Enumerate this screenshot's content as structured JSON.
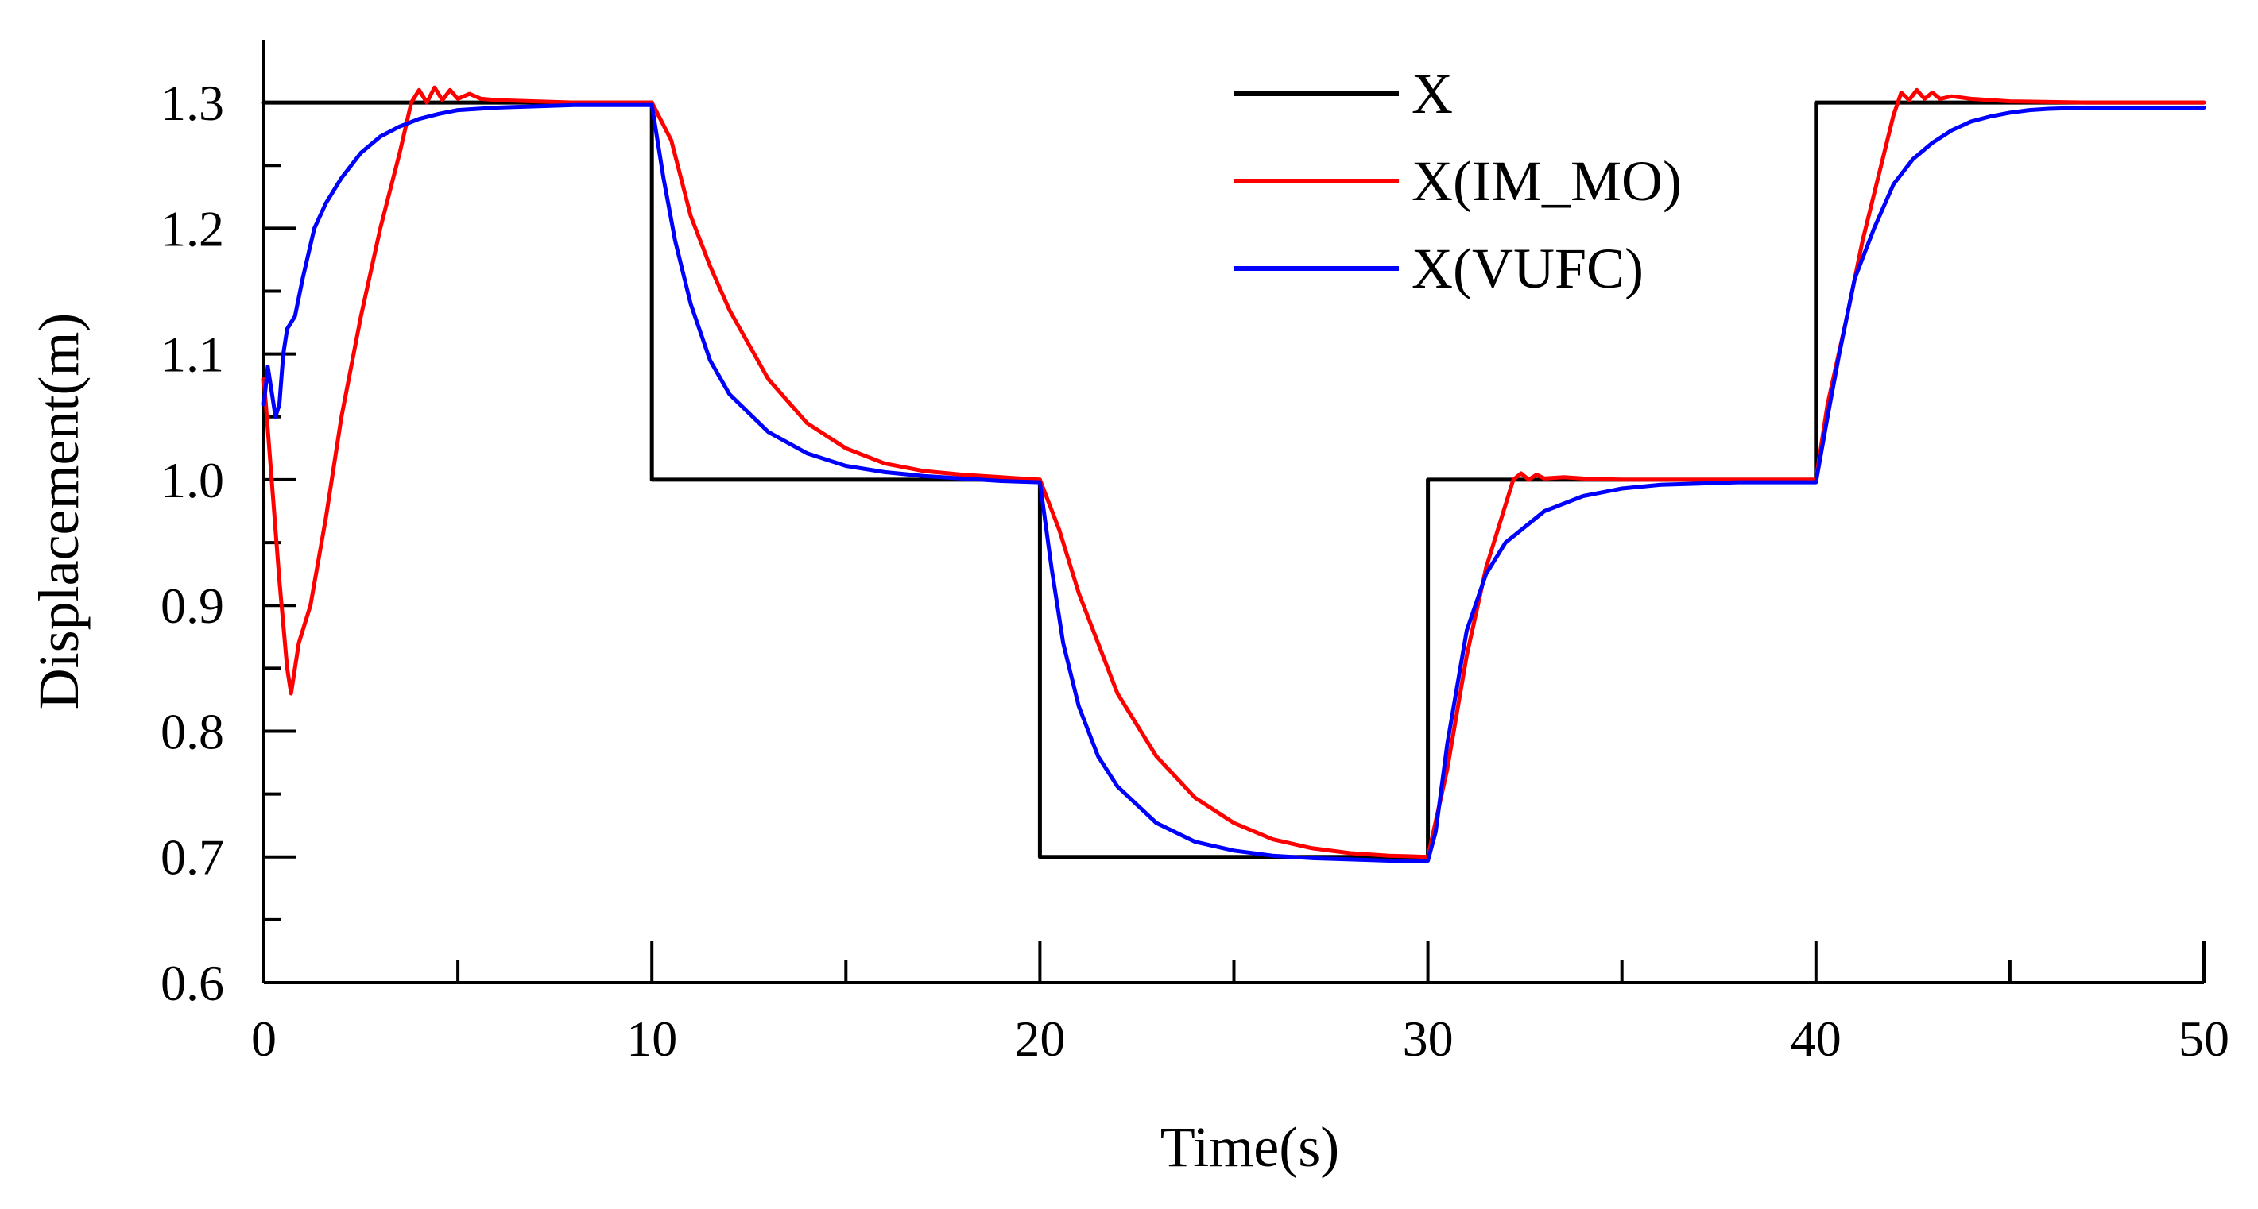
{
  "chart_data": {
    "type": "line",
    "title": "",
    "xlabel": "Time(s)",
    "ylabel": "Displacement(m)",
    "xlim": [
      0,
      50
    ],
    "ylim": [
      0.6,
      1.35
    ],
    "x_ticks": [
      0,
      10,
      20,
      30,
      40,
      50
    ],
    "x_tick_labels": [
      "0",
      "10",
      "20",
      "30",
      "40",
      "50"
    ],
    "x_minor_ticks": [
      5,
      15,
      25,
      35,
      45
    ],
    "y_ticks": [
      0.6,
      0.7,
      0.8,
      0.9,
      1.0,
      1.1,
      1.2,
      1.3
    ],
    "y_tick_labels": [
      "0.6",
      "0.7",
      "0.8",
      "0.9",
      "1.0",
      "1.1",
      "1.2",
      "1.3"
    ],
    "y_minor_ticks": [
      0.65,
      0.75,
      0.85,
      0.95,
      1.05,
      1.15,
      1.25
    ],
    "grid": false,
    "legend_position": "top-right",
    "series": [
      {
        "name": "X",
        "color": "#000000",
        "x": [
          0,
          0.001,
          10,
          10.001,
          20,
          20.001,
          30,
          30.001,
          40,
          40.001,
          50
        ],
        "y": [
          1.3,
          1.3,
          1.3,
          1.0,
          1.0,
          0.7,
          0.7,
          1.0,
          1.0,
          1.3,
          1.3
        ]
      },
      {
        "name": "X(IM_MO)",
        "color": "#ff0000",
        "x": [
          0,
          0.2,
          0.4,
          0.6,
          0.7,
          0.9,
          1.2,
          1.6,
          2.0,
          2.5,
          3.0,
          3.5,
          3.8,
          4.0,
          4.2,
          4.4,
          4.6,
          4.8,
          5.0,
          5.3,
          5.6,
          6,
          7,
          8,
          9,
          10,
          10.5,
          11,
          11.5,
          12,
          13,
          14,
          15,
          16,
          17,
          18,
          19,
          20,
          20.5,
          21,
          21.5,
          22,
          23,
          24,
          25,
          26,
          27,
          28,
          29,
          30,
          30.5,
          31,
          31.5,
          32,
          32.2,
          32.4,
          32.6,
          32.8,
          33,
          33.5,
          34,
          35,
          36,
          38,
          40,
          40.3,
          40.8,
          41.2,
          41.6,
          42,
          42.2,
          42.4,
          42.6,
          42.8,
          43,
          43.2,
          43.5,
          44,
          45,
          47,
          50
        ],
        "y": [
          1.08,
          1.0,
          0.92,
          0.85,
          0.83,
          0.87,
          0.9,
          0.97,
          1.05,
          1.13,
          1.2,
          1.26,
          1.3,
          1.31,
          1.3,
          1.312,
          1.302,
          1.31,
          1.303,
          1.307,
          1.303,
          1.302,
          1.301,
          1.3,
          1.3,
          1.3,
          1.27,
          1.21,
          1.17,
          1.135,
          1.08,
          1.045,
          1.025,
          1.013,
          1.007,
          1.004,
          1.002,
          1.0,
          0.96,
          0.91,
          0.87,
          0.83,
          0.78,
          0.747,
          0.727,
          0.714,
          0.707,
          0.703,
          0.701,
          0.7,
          0.77,
          0.86,
          0.93,
          0.98,
          1.0,
          1.005,
          1.0,
          1.004,
          1.001,
          1.002,
          1.001,
          1.0,
          1.0,
          1.0,
          1.0,
          1.06,
          1.13,
          1.19,
          1.24,
          1.29,
          1.308,
          1.302,
          1.31,
          1.303,
          1.308,
          1.303,
          1.305,
          1.303,
          1.301,
          1.3,
          1.3
        ]
      },
      {
        "name": "X(VUFC)",
        "color": "#0000ff",
        "x": [
          0,
          0.1,
          0.2,
          0.3,
          0.4,
          0.5,
          0.6,
          0.8,
          1.0,
          1.3,
          1.6,
          2.0,
          2.5,
          3.0,
          3.5,
          4.0,
          4.5,
          5.0,
          6.0,
          7,
          8,
          9,
          10,
          10.3,
          10.6,
          11,
          11.5,
          12,
          13,
          14,
          15,
          16,
          17,
          18,
          19,
          20,
          20.3,
          20.6,
          21,
          21.5,
          22,
          23,
          24,
          25,
          26,
          27,
          28,
          29,
          30,
          30.2,
          30.5,
          31,
          31.5,
          32,
          33,
          34,
          35,
          36,
          37,
          38,
          39,
          40,
          40.3,
          40.6,
          41,
          41.5,
          42,
          42.5,
          43,
          43.5,
          44,
          44.5,
          45,
          45.5,
          46,
          47,
          48,
          50
        ],
        "y": [
          1.06,
          1.09,
          1.07,
          1.05,
          1.06,
          1.1,
          1.12,
          1.13,
          1.16,
          1.2,
          1.22,
          1.24,
          1.26,
          1.273,
          1.281,
          1.287,
          1.291,
          1.294,
          1.296,
          1.297,
          1.298,
          1.298,
          1.298,
          1.24,
          1.19,
          1.14,
          1.095,
          1.068,
          1.038,
          1.021,
          1.011,
          1.006,
          1.003,
          1.001,
          0.999,
          0.998,
          0.93,
          0.87,
          0.82,
          0.78,
          0.756,
          0.727,
          0.712,
          0.705,
          0.701,
          0.699,
          0.698,
          0.697,
          0.697,
          0.72,
          0.79,
          0.88,
          0.925,
          0.95,
          0.975,
          0.987,
          0.993,
          0.996,
          0.997,
          0.998,
          0.998,
          0.998,
          1.05,
          1.1,
          1.16,
          1.2,
          1.235,
          1.255,
          1.268,
          1.278,
          1.285,
          1.289,
          1.292,
          1.294,
          1.295,
          1.296,
          1.296,
          1.296
        ]
      }
    ]
  }
}
